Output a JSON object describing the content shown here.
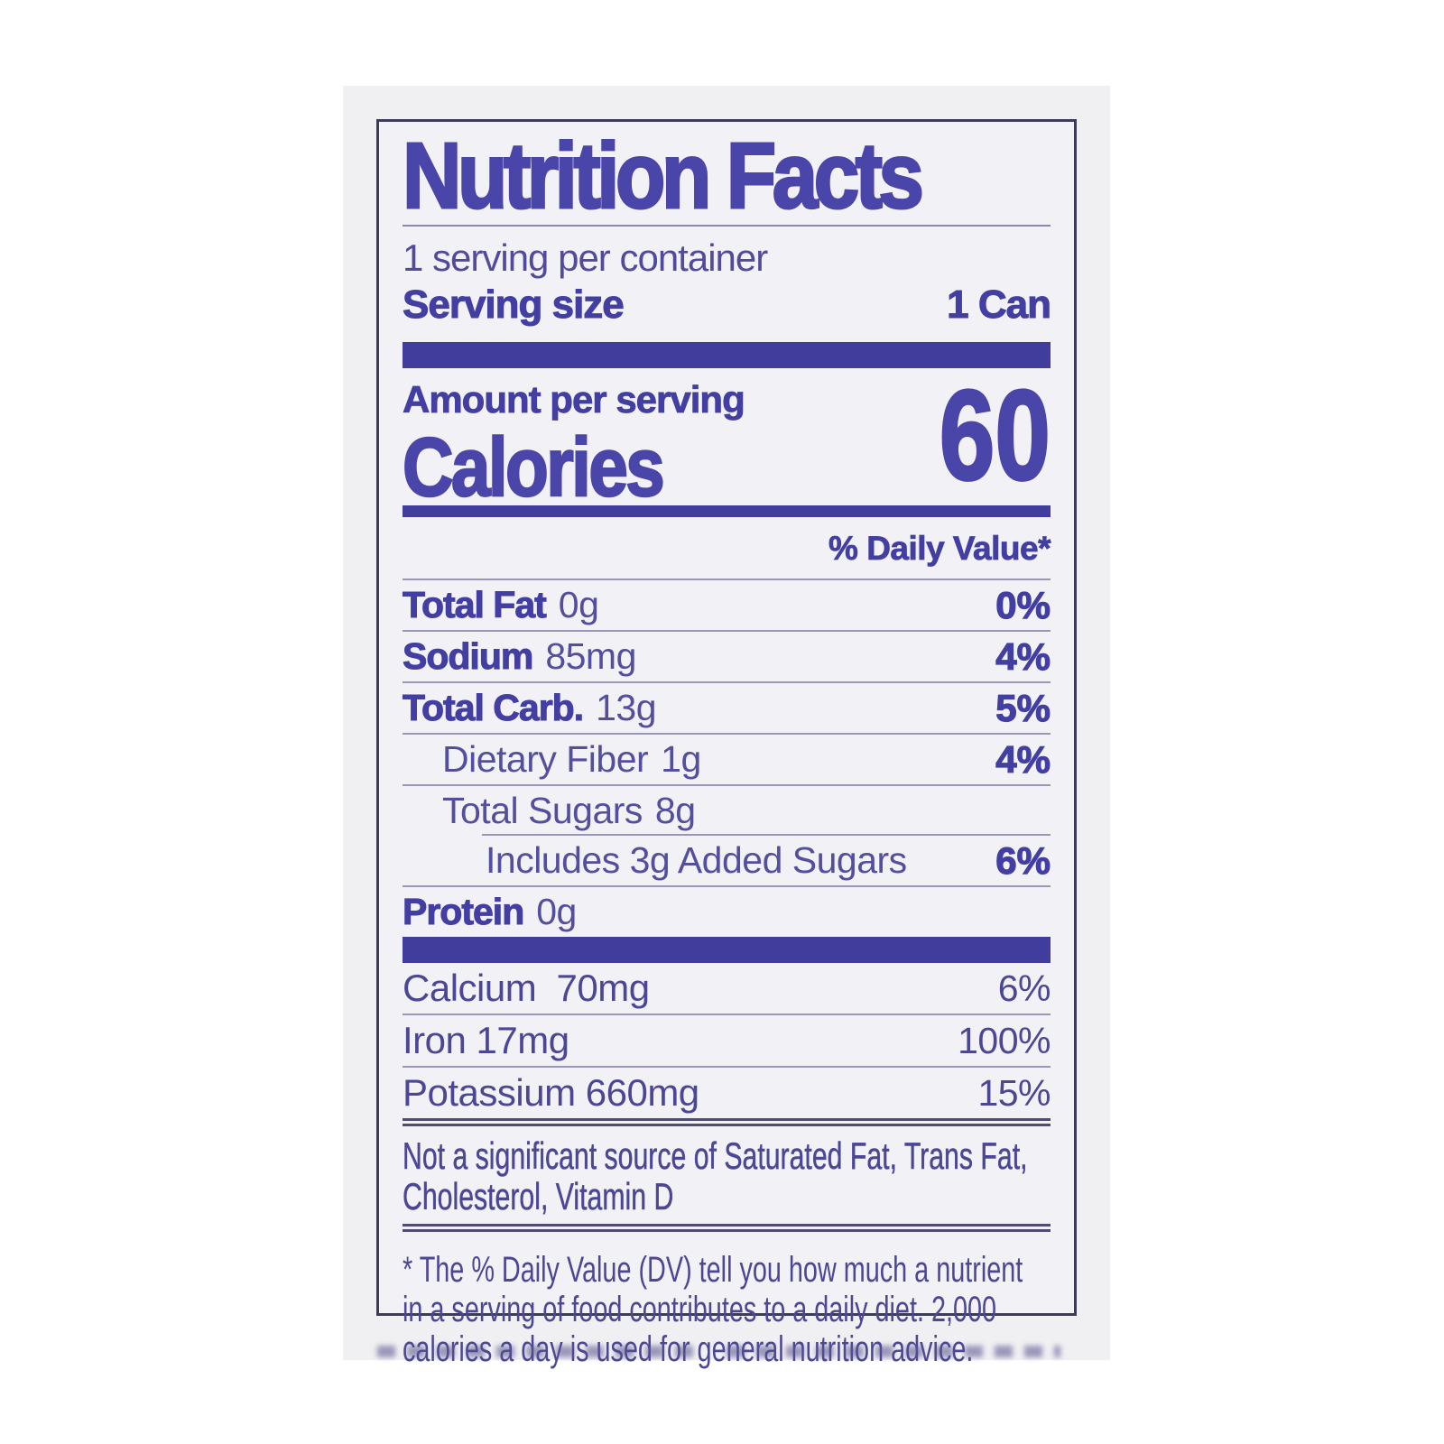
{
  "colors": {
    "accent_purple": "#423ea2",
    "title_purple": "#4a45a8",
    "bar_purple": "#403d9c",
    "hairline": "#9b95ba",
    "box_border": "#3d3b5c",
    "photo_background": "#f0eff2",
    "page_background": "#ffffff"
  },
  "nutrition": {
    "title": "Nutrition Facts",
    "servings_per_container": "1 serving per container",
    "serving_size_label": "Serving size",
    "serving_size_value": "1 Can",
    "amount_per_serving": "Amount per serving",
    "calories_label": "Calories",
    "calories_value": "60",
    "daily_value_header": "% Daily Value*",
    "rows": [
      {
        "name": "Total Fat",
        "amount": "0g",
        "dv": "0%"
      },
      {
        "name": "Sodium",
        "amount": "85mg",
        "dv": "4%"
      },
      {
        "name": "Total Carb.",
        "amount": "13g",
        "dv": "5%"
      },
      {
        "name": "Dietary Fiber",
        "amount": "1g",
        "dv": "4%"
      },
      {
        "name": "Total Sugars",
        "amount": "8g",
        "dv": ""
      },
      {
        "name": "Includes 3g Added Sugars",
        "amount": "",
        "dv": "6%"
      },
      {
        "name": "Protein",
        "amount": "0g",
        "dv": ""
      }
    ],
    "minerals": [
      {
        "name": "Calcium",
        "amount": "70mg",
        "dv": "6%"
      },
      {
        "name": "Iron",
        "amount": "17mg",
        "dv": "100%"
      },
      {
        "name": "Potassium",
        "amount": "660mg",
        "dv": "15%"
      }
    ],
    "not_significant": "Not a significant source of Saturated Fat, Trans Fat, Cholesterol, Vitamin D",
    "footnote": "* The % Daily Value (DV) tell you how much a nutrient in a serving of food contributes to a daily diet. 2,000 calories a day is used for general nutrition advice."
  }
}
